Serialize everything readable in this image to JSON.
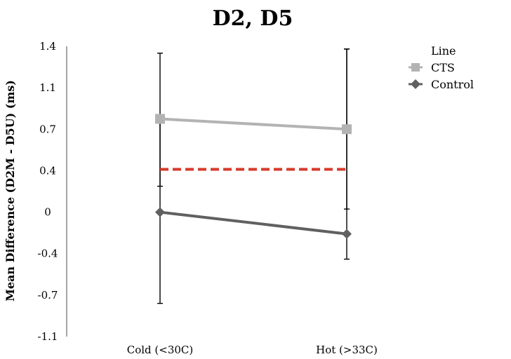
{
  "chart_data": {
    "type": "line",
    "title": "D2, D5",
    "xlabel": "",
    "ylabel": "Mean Difference (D2M - D5U) (ms)",
    "categories": [
      "Cold (<30C)",
      "Hot (>33C)"
    ],
    "y_ticks": [
      "1.4",
      "1.1",
      "0.7",
      "0.4",
      "0",
      "-0.4",
      "-0.7",
      "-1.1"
    ],
    "ylim": [
      -1.1,
      1.4
    ],
    "grid": false,
    "legend": {
      "title": "Line",
      "position": "top-right"
    },
    "series": [
      {
        "name": "CTS",
        "values": [
          0.8,
          0.7
        ],
        "error_high": [
          1.35,
          1.38
        ],
        "error_low": [
          0.25,
          0.03
        ],
        "color": "#b3b3b3",
        "marker": "square"
      },
      {
        "name": "Control",
        "values": [
          0.0,
          -0.21
        ],
        "error_high": [
          0.78,
          1.38
        ],
        "error_low": [
          -0.78,
          -0.44
        ],
        "color": "#606060",
        "marker": "diamond"
      }
    ],
    "reference_line": {
      "value": 0.41,
      "color": "#d63b2b",
      "style": "dashed"
    }
  }
}
